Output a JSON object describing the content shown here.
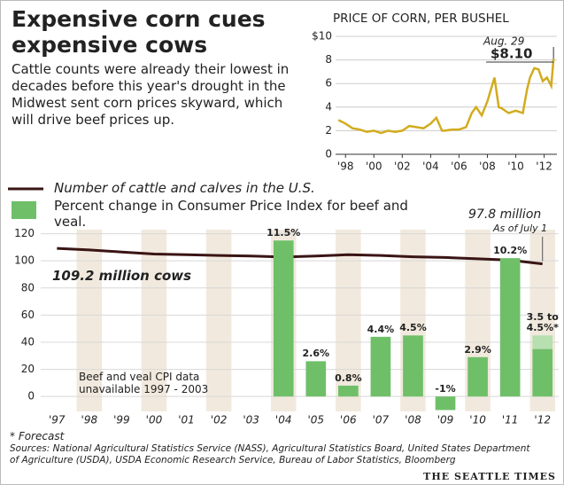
{
  "title": "Expensive corn cues expensive cows",
  "description": "Cattle counts were already their lowest in decades before this year's drought in the Midwest sent corn prices skyward, which will drive beef prices up.",
  "chart_data": [
    {
      "type": "line",
      "title": "PRICE OF CORN, PER BUSHEL",
      "color": "#d2ac1e",
      "x": [
        1997.5,
        1998,
        1998.5,
        1999,
        1999.5,
        2000,
        2000.5,
        2001,
        2001.5,
        2002,
        2002.5,
        2003,
        2003.5,
        2004,
        2004.4,
        2004.8,
        2005,
        2005.5,
        2006,
        2006.5,
        2006.9,
        2007.2,
        2007.6,
        2008,
        2008.5,
        2008.8,
        2009,
        2009.5,
        2010,
        2010.5,
        2010.8,
        2011,
        2011.3,
        2011.6,
        2011.9,
        2012.2,
        2012.5,
        2012.66
      ],
      "values": [
        2.9,
        2.6,
        2.2,
        2.1,
        1.9,
        2.0,
        1.8,
        2.0,
        1.9,
        2.0,
        2.4,
        2.3,
        2.2,
        2.6,
        3.1,
        2.0,
        2.0,
        2.1,
        2.1,
        2.3,
        3.5,
        4.0,
        3.3,
        4.5,
        6.5,
        4.0,
        3.9,
        3.5,
        3.7,
        3.5,
        5.5,
        6.5,
        7.3,
        7.2,
        6.2,
        6.5,
        5.8,
        8.1
      ],
      "xlim": [
        1997.3,
        2012.9
      ],
      "xticks": [
        {
          "value": 1998,
          "label": "'98"
        },
        {
          "value": 2000,
          "label": "'00"
        },
        {
          "value": 2002,
          "label": "'02"
        },
        {
          "value": 2004,
          "label": "'04"
        },
        {
          "value": 2006,
          "label": "'06"
        },
        {
          "value": 2008,
          "label": "'08"
        },
        {
          "value": 2010,
          "label": "'10"
        },
        {
          "value": 2012,
          "label": "'12"
        }
      ],
      "ylim": [
        0,
        10
      ],
      "yticks": [
        0,
        2,
        4,
        6,
        8,
        {
          "value": 10,
          "label": "$10"
        }
      ],
      "grid": true,
      "annotations": [
        "Aug. 29",
        "$8.10"
      ]
    },
    {
      "type": "bar",
      "categories": [
        "'97",
        "'98",
        "'99",
        "'00",
        "'01",
        "'02",
        "'03",
        "'04",
        "'05",
        "'06",
        "'07",
        "'08",
        "'09",
        "'10",
        "'11",
        "'12"
      ],
      "series": [
        {
          "name": "Number of cattle and calves in the U.S.",
          "type": "line",
          "color": "#3a1414",
          "values": [
            109.2,
            108.0,
            106.5,
            105.0,
            104.5,
            104.0,
            103.5,
            102.8,
            103.5,
            104.5,
            104.0,
            103.0,
            102.5,
            101.5,
            100.5,
            97.8
          ]
        },
        {
          "name": "Percent change in Consumer Price Index for beef and veal.",
          "type": "bar",
          "axis": "y2",
          "color": "#6fbf69",
          "values": [
            null,
            null,
            null,
            null,
            null,
            null,
            null,
            11.5,
            2.6,
            0.8,
            4.4,
            4.5,
            -1,
            2.9,
            10.2,
            3.5
          ],
          "value_labels": [
            null,
            null,
            null,
            null,
            null,
            null,
            null,
            "11.5%",
            "2.6%",
            "0.8%",
            "4.4%",
            "4.5%",
            "-1%",
            "2.9%",
            "10.2%",
            "3.5 to 4.5%*"
          ],
          "forecast_high": 4.5,
          "forecast_color": "#b7dfb0"
        }
      ],
      "ylim": [
        -11,
        123
      ],
      "yticks": [
        0,
        20,
        40,
        60,
        80,
        100,
        120
      ],
      "y2lim": [
        -1.1,
        12.3
      ],
      "grid": true,
      "annotations": [
        "97.8 million",
        "As of July 1",
        "109.2 million cows",
        "Beef and veal CPI data unavailable 1997 - 2003"
      ]
    }
  ],
  "notes": [
    "* Forecast",
    "Sources: National Agricultural Statistics Service (NASS), Agricultural Statistics Board, United States Department of Agriculture (USDA), USDA Economic Research Service, Bureau of Labor Statistics, Bloomberg"
  ],
  "credit": "THE SEATTLE TIMES"
}
